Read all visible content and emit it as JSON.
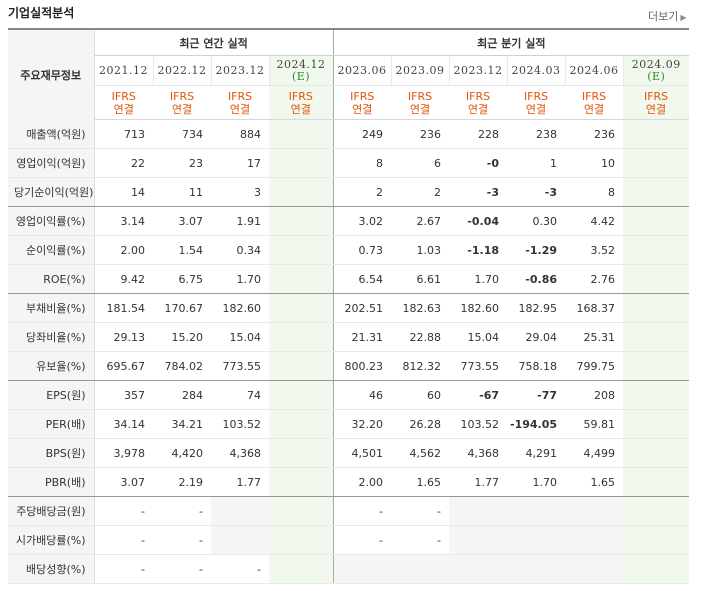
{
  "title": "기업실적분석",
  "more_label": "더보기",
  "table": {
    "corner_label": "주요재무정보",
    "groups": {
      "annual": "최근 연간 실적",
      "quarter": "최근 분기 실적"
    },
    "annual_periods": [
      {
        "date": "2021.12",
        "est": ""
      },
      {
        "date": "2022.12",
        "est": ""
      },
      {
        "date": "2023.12",
        "est": ""
      },
      {
        "date": "2024.12",
        "est": "(E)"
      }
    ],
    "quarter_periods": [
      {
        "date": "2023.06",
        "est": ""
      },
      {
        "date": "2023.09",
        "est": ""
      },
      {
        "date": "2023.12",
        "est": ""
      },
      {
        "date": "2024.03",
        "est": ""
      },
      {
        "date": "2024.06",
        "est": ""
      },
      {
        "date": "2024.09",
        "est": "(E)"
      }
    ],
    "ifrs_line1": "IFRS",
    "ifrs_line2": "연결",
    "rows": [
      {
        "label": "매출액(억원)",
        "annual": [
          "713",
          "734",
          "884",
          ""
        ],
        "quarter": [
          "249",
          "236",
          "228",
          "238",
          "236",
          ""
        ]
      },
      {
        "label": "영업이익(억원)",
        "annual": [
          "22",
          "23",
          "17",
          ""
        ],
        "quarter": [
          "8",
          "6",
          "-0",
          "1",
          "10",
          ""
        ]
      },
      {
        "label": "당기순이익(억원)",
        "annual": [
          "14",
          "11",
          "3",
          ""
        ],
        "quarter": [
          "2",
          "2",
          "-3",
          "-3",
          "8",
          ""
        ]
      },
      {
        "label": "영업이익률(%)",
        "annual": [
          "3.14",
          "3.07",
          "1.91",
          ""
        ],
        "quarter": [
          "3.02",
          "2.67",
          "-0.04",
          "0.30",
          "4.42",
          ""
        ]
      },
      {
        "label": "순이익률(%)",
        "annual": [
          "2.00",
          "1.54",
          "0.34",
          ""
        ],
        "quarter": [
          "0.73",
          "1.03",
          "-1.18",
          "-1.29",
          "3.52",
          ""
        ]
      },
      {
        "label": "ROE(%)",
        "annual": [
          "9.42",
          "6.75",
          "1.70",
          ""
        ],
        "quarter": [
          "6.54",
          "6.61",
          "1.70",
          "-0.86",
          "2.76",
          ""
        ]
      },
      {
        "label": "부채비율(%)",
        "annual": [
          "181.54",
          "170.67",
          "182.60",
          ""
        ],
        "quarter": [
          "202.51",
          "182.63",
          "182.60",
          "182.95",
          "168.37",
          ""
        ]
      },
      {
        "label": "당좌비율(%)",
        "annual": [
          "29.13",
          "15.20",
          "15.04",
          ""
        ],
        "quarter": [
          "21.31",
          "22.88",
          "15.04",
          "29.04",
          "25.31",
          ""
        ]
      },
      {
        "label": "유보율(%)",
        "annual": [
          "695.67",
          "784.02",
          "773.55",
          ""
        ],
        "quarter": [
          "800.23",
          "812.32",
          "773.55",
          "758.18",
          "799.75",
          ""
        ]
      },
      {
        "label": "EPS(원)",
        "annual": [
          "357",
          "284",
          "74",
          ""
        ],
        "quarter": [
          "46",
          "60",
          "-67",
          "-77",
          "208",
          ""
        ]
      },
      {
        "label": "PER(배)",
        "annual": [
          "34.14",
          "34.21",
          "103.52",
          ""
        ],
        "quarter": [
          "32.20",
          "26.28",
          "103.52",
          "-194.05",
          "59.81",
          ""
        ]
      },
      {
        "label": "BPS(원)",
        "annual": [
          "3,978",
          "4,420",
          "4,368",
          ""
        ],
        "quarter": [
          "4,501",
          "4,562",
          "4,368",
          "4,291",
          "4,499",
          ""
        ]
      },
      {
        "label": "PBR(배)",
        "annual": [
          "3.07",
          "2.19",
          "1.77",
          ""
        ],
        "quarter": [
          "2.00",
          "1.65",
          "1.77",
          "1.70",
          "1.65",
          ""
        ]
      },
      {
        "label": "주당배당금(원)",
        "annual": [
          "-",
          "-",
          null,
          ""
        ],
        "quarter": [
          "-",
          "-",
          null,
          null,
          null,
          ""
        ]
      },
      {
        "label": "시가배당률(%)",
        "annual": [
          "-",
          "-",
          null,
          ""
        ],
        "quarter": [
          "-",
          "-",
          null,
          null,
          null,
          ""
        ]
      },
      {
        "label": "배당성향(%)",
        "annual": [
          "-",
          "-",
          "-",
          ""
        ],
        "quarter": [
          null,
          null,
          null,
          null,
          null,
          ""
        ]
      }
    ]
  },
  "colors": {
    "ifrs_text": "#e2540a",
    "estimate_text": "#2b8a2b",
    "estimate_bg": "#f1f9ee",
    "negative_text": "#e00000",
    "label_bg": "#f5f5f5"
  }
}
